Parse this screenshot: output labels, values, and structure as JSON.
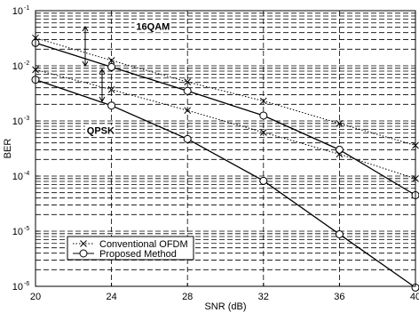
{
  "chart_data": {
    "type": "line",
    "title": "",
    "xlabel": "SNR (dB)",
    "ylabel": "BER",
    "y_scale": "log",
    "xlim": [
      20,
      40
    ],
    "ylim": [
      1e-06,
      0.1
    ],
    "grid": true,
    "legend_position": "lower-left",
    "x_ticks": [
      {
        "value": 20,
        "label": "20"
      },
      {
        "value": 24,
        "label": "24"
      },
      {
        "value": 28,
        "label": "28"
      },
      {
        "value": 32,
        "label": "32"
      },
      {
        "value": 36,
        "label": "36"
      },
      {
        "value": 40,
        "label": "40"
      }
    ],
    "y_ticks": [
      {
        "value": 0.1,
        "base": "10",
        "exp": "-1"
      },
      {
        "value": 0.01,
        "base": "10",
        "exp": "-2"
      },
      {
        "value": 0.001,
        "base": "10",
        "exp": "-3"
      },
      {
        "value": 0.0001,
        "base": "10",
        "exp": "-4"
      },
      {
        "value": 1e-05,
        "base": "10",
        "exp": "-5"
      },
      {
        "value": 1e-06,
        "base": "10",
        "exp": "-6"
      }
    ],
    "series": [
      {
        "name": "Conventional OFDM",
        "group": "16QAM",
        "style": "dotted",
        "marker": "x",
        "x": [
          20,
          24,
          28,
          32,
          36,
          40
        ],
        "y": [
          0.032,
          0.0125,
          0.0051,
          0.0023,
          0.0009,
          0.00036
        ]
      },
      {
        "name": "Proposed Method",
        "group": "16QAM",
        "style": "solid",
        "marker": "o",
        "x": [
          20,
          24,
          28,
          32,
          36,
          40
        ],
        "y": [
          0.026,
          0.0095,
          0.0035,
          0.00125,
          0.0003,
          4.5e-05
        ]
      },
      {
        "name": "Conventional OFDM",
        "group": "QPSK",
        "style": "dotted",
        "marker": "x",
        "x": [
          20,
          24,
          28,
          32,
          36,
          40
        ],
        "y": [
          0.0085,
          0.0037,
          0.00155,
          0.00062,
          0.00025,
          9e-05
        ]
      },
      {
        "name": "Proposed Method",
        "group": "QPSK",
        "style": "solid",
        "marker": "o",
        "x": [
          20,
          24,
          28,
          32,
          36,
          40
        ],
        "y": [
          0.0056,
          0.0019,
          0.00047,
          8.2e-05,
          8.8e-06,
          9.5e-07
        ]
      }
    ],
    "legend": [
      {
        "label": "Conventional OFDM",
        "style": "dotted",
        "marker": "x"
      },
      {
        "label": "Proposed Method",
        "style": "solid",
        "marker": "o"
      }
    ],
    "annotations": [
      {
        "text": "16QAM",
        "x": 25.3,
        "y": 0.045
      },
      {
        "text": "QPSK",
        "x": 22.7,
        "y": 0.00058
      }
    ]
  }
}
